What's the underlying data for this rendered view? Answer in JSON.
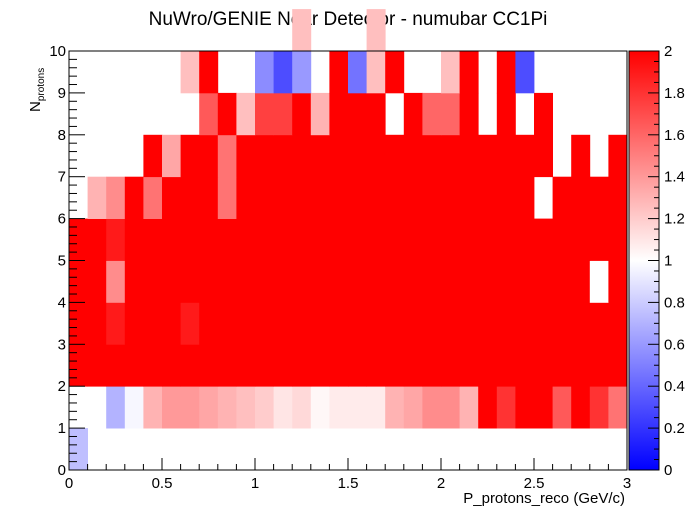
{
  "chart_data": {
    "type": "heatmap",
    "title": "NuWro/GENIE Near Detector - numubar CC1Pi",
    "xlabel": "P_protons_reco (GeV/c)",
    "ylabel": {
      "main": "N",
      "sub": "protons"
    },
    "xlim": [
      0,
      3
    ],
    "ylim": [
      0,
      10
    ],
    "x_bin_width": 0.1,
    "y_bin_width": 1,
    "x_ticks": [
      0,
      0.5,
      1,
      1.5,
      2,
      2.5,
      3
    ],
    "x_tick_labels": [
      "0",
      "0.5",
      "1",
      "1.5",
      "2",
      "2.5",
      "3"
    ],
    "y_ticks": [
      0,
      1,
      2,
      3,
      4,
      5,
      6,
      7,
      8,
      9,
      10
    ],
    "y_tick_labels": [
      "0",
      "1",
      "2",
      "3",
      "4",
      "5",
      "6",
      "7",
      "8",
      "9",
      "10"
    ],
    "zlim": [
      0,
      2
    ],
    "z_ticks": [
      0,
      0.2,
      0.4,
      0.6,
      0.8,
      1,
      1.2,
      1.4,
      1.6,
      1.8,
      2
    ],
    "z_tick_labels": [
      "0",
      "0.2",
      "0.4",
      "0.6",
      "0.8",
      "1",
      "1.2",
      "1.4",
      "1.6",
      "1.8",
      "2"
    ],
    "colormap": {
      "low": "#0000ff",
      "mid": "#ffffff",
      "high": "#ff0000"
    },
    "grid": false,
    "rows": [
      {
        "y": 0,
        "values": [
          0.75,
          null,
          null,
          null,
          null,
          null,
          null,
          null,
          null,
          null,
          null,
          null,
          null,
          null,
          null,
          null,
          null,
          null,
          null,
          null,
          null,
          null,
          null,
          null,
          null,
          null,
          null,
          null,
          null,
          null
        ]
      },
      {
        "y": 1,
        "values": [
          null,
          null,
          0.7,
          0.97,
          1.3,
          1.4,
          1.4,
          1.35,
          1.3,
          1.25,
          1.2,
          1.1,
          1.15,
          1.03,
          1.08,
          1.08,
          1.08,
          1.3,
          1.35,
          1.45,
          1.45,
          1.3,
          2,
          1.8,
          2,
          2,
          1.65,
          2,
          1.8,
          1.55
        ]
      },
      {
        "y": 2,
        "values": [
          2,
          2,
          2,
          2,
          2,
          2,
          2,
          2,
          2,
          2,
          2,
          2,
          2,
          2,
          2,
          2,
          2,
          2,
          2,
          2,
          2,
          2,
          2,
          2,
          2,
          2,
          2,
          2,
          2,
          2
        ]
      },
      {
        "y": 3,
        "values": [
          2,
          2,
          1.9,
          2,
          2,
          2,
          1.9,
          2,
          2,
          2,
          2,
          2,
          2,
          2,
          2,
          2,
          2,
          2,
          2,
          2,
          2,
          2,
          2,
          2,
          2,
          2,
          2,
          2,
          2,
          2
        ]
      },
      {
        "y": 4,
        "values": [
          2,
          2,
          1.45,
          2,
          2,
          2,
          2,
          2,
          2,
          2,
          2,
          2,
          2,
          2,
          2,
          2,
          2,
          2,
          2,
          2,
          2,
          2,
          2,
          2,
          2,
          2,
          2,
          2,
          1.0,
          2
        ]
      },
      {
        "y": 5,
        "values": [
          2,
          2,
          1.9,
          2,
          2,
          2,
          2,
          2,
          2,
          2,
          2,
          2,
          2,
          2,
          2,
          2,
          2,
          2,
          2,
          2,
          2,
          2,
          2,
          2,
          2,
          2,
          2,
          2,
          2,
          2
        ]
      },
      {
        "y": 6,
        "values": [
          null,
          1.3,
          1.45,
          2,
          1.55,
          2,
          2,
          2,
          1.55,
          2,
          2,
          2,
          2,
          2,
          2,
          2,
          2,
          2,
          2,
          2,
          2,
          2,
          2,
          2,
          2,
          null,
          2,
          2,
          2,
          2
        ]
      },
      {
        "y": 7,
        "values": [
          null,
          null,
          null,
          null,
          2,
          1.35,
          2,
          2,
          1.55,
          2,
          2,
          2,
          2,
          2,
          2,
          2,
          2,
          2,
          2,
          2,
          2,
          2,
          2,
          2,
          2,
          2,
          null,
          2,
          null,
          2
        ]
      },
      {
        "y": 8,
        "values": [
          null,
          null,
          null,
          null,
          null,
          null,
          null,
          1.65,
          2,
          1.25,
          1.75,
          1.75,
          2,
          1.3,
          2,
          2,
          2,
          null,
          2,
          1.6,
          1.6,
          2,
          null,
          2,
          null,
          2,
          null,
          null,
          null,
          null
        ]
      },
      {
        "y": 9,
        "values": [
          null,
          null,
          null,
          null,
          null,
          null,
          1.25,
          2,
          null,
          null,
          0.55,
          0.3,
          0.6,
          null,
          2,
          0.45,
          1.25,
          2,
          null,
          null,
          1.25,
          2,
          null,
          2,
          0.3,
          null,
          null,
          null,
          null,
          null
        ]
      },
      {
        "y": 10,
        "values": [
          null,
          null,
          null,
          null,
          null,
          null,
          null,
          null,
          null,
          null,
          null,
          null,
          1.25,
          null,
          null,
          null,
          1.25,
          null,
          null,
          null,
          null,
          null,
          null,
          null,
          null,
          null,
          null,
          null,
          null,
          null
        ]
      }
    ]
  }
}
